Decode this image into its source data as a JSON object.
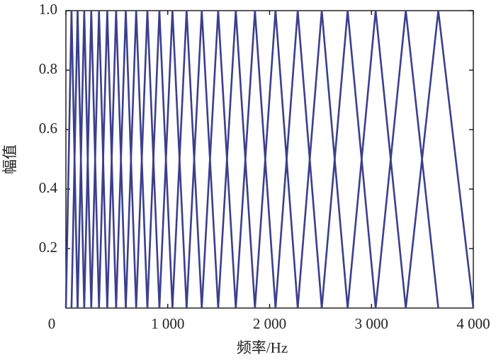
{
  "chart_data": {
    "type": "filterbank",
    "x_label": "频率/Hz",
    "y_label": "幅值",
    "points": [
      0,
      55,
      115,
      180,
      249,
      325,
      406,
      493,
      588,
      690,
      800,
      918,
      1046,
      1185,
      1334,
      1495,
      1668,
      1856,
      2058,
      2276,
      2512,
      2766,
      3041,
      3337,
      3656,
      4000
    ],
    "peak": 1,
    "color": "#3b3f8c",
    "xlim": [
      0,
      4000
    ],
    "xticks": [
      0,
      {
        "value": 1000,
        "label": "1 000"
      },
      {
        "value": 2000,
        "label": "2 000"
      },
      {
        "value": 3000,
        "label": "3 000"
      },
      {
        "value": 4000,
        "label": "4 000"
      }
    ],
    "ylim": [
      0,
      1
    ],
    "yticks": [
      0.2,
      0.4,
      0.6,
      0.8,
      {
        "value": 1,
        "label": "1.0"
      }
    ]
  }
}
